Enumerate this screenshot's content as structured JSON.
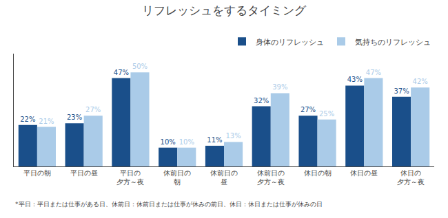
{
  "chart_data": {
    "type": "bar",
    "title": "リフレッシュをするタイミング",
    "categories": [
      "平日の朝",
      "平日の昼",
      "平日の\n夕方～夜",
      "休前日の\n朝",
      "休前日の\n昼",
      "休前日の\n夕方～夜",
      "休日の朝",
      "休日の昼",
      "休日の\n夕方～夜"
    ],
    "series": [
      {
        "name": "身体のリフレッシュ",
        "color": "#1a4f8a",
        "values": [
          22,
          23,
          47,
          10,
          11,
          32,
          27,
          43,
          37
        ],
        "value_labels": [
          "22%",
          "23%",
          "47%",
          "10%",
          "11%",
          "32%",
          "27%",
          "43%",
          "37%"
        ]
      },
      {
        "name": "気持ちのリフレッシュ",
        "color": "#aacbe8",
        "values": [
          21,
          27,
          50,
          10,
          13,
          39,
          25,
          47,
          42
        ],
        "value_labels": [
          "21%",
          "27%",
          "50%",
          "10%",
          "13%",
          "39%",
          "25%",
          "47%",
          "42%"
        ]
      }
    ],
    "ylim": [
      0,
      60
    ],
    "grid": false,
    "legend": "upper right",
    "data_labels": true,
    "tick_labels": "x",
    "annotations": [
      "*平日：平日または仕事がある日、休前日：休前日または仕事が休みの前日、休日：休日または仕事が休みの日"
    ]
  }
}
